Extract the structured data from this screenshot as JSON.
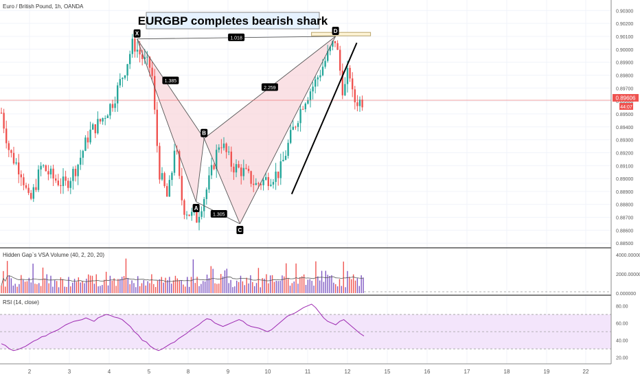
{
  "header": {
    "symbol_title": "Euro / British Pound, 1h, OANDA",
    "idea_title": "EURGBP completes bearish shark"
  },
  "colors": {
    "up": "#26a69a",
    "down": "#ef5350",
    "pattern_fill": "#f8d7dc",
    "pattern_line": "#555555",
    "trendline": "#000000",
    "price_line": "#ef5350",
    "rsi_line": "#9c27b0",
    "rsi_band": "#f3e5fb",
    "vol_up": "#7e57c2",
    "vol_down": "#ef5350"
  },
  "chart_data": [
    {
      "type": "candlestick",
      "title": "Euro / British Pound, 1h, OANDA",
      "x_ticks": [
        "2",
        "3",
        "4",
        "5",
        "8",
        "9",
        "10",
        "11",
        "12",
        "15",
        "16",
        "17",
        "18",
        "19",
        "22"
      ],
      "y_ticks": [
        "0.90300",
        "0.90200",
        "0.90100",
        "0.90000",
        "0.89900",
        "0.89800",
        "0.89700",
        "0.89600",
        "0.89500",
        "0.89400",
        "0.89300",
        "0.89200",
        "0.89100",
        "0.89000",
        "0.88900",
        "0.88800",
        "0.88700",
        "0.88600",
        "0.88500"
      ],
      "ylim": [
        0.8848,
        0.9036
      ],
      "last_price": "0.89606",
      "countdown": "44:07",
      "pattern": {
        "name": "Shark",
        "points": [
          {
            "label": "X",
            "x": "4.7",
            "price": 0.9008
          },
          {
            "label": "A",
            "x": "8.2",
            "price": 0.8882
          },
          {
            "label": "B",
            "x": "8.4",
            "price": 0.8931
          },
          {
            "label": "C",
            "x": "9.3",
            "price": 0.8865
          },
          {
            "label": "D",
            "x": "11.7",
            "price": 0.901
          }
        ],
        "ratios": [
          "1.018",
          "1.385",
          "2.259",
          "1.305"
        ]
      },
      "price_path": [
        {
          "x": "1.0",
          "price": 0.899
        },
        {
          "x": "1.3",
          "price": 0.895
        },
        {
          "x": "1.5",
          "price": 0.892
        },
        {
          "x": "1.8",
          "price": 0.8905
        },
        {
          "x": "2.0",
          "price": 0.888
        },
        {
          "x": "2.3",
          "price": 0.891
        },
        {
          "x": "2.6",
          "price": 0.89
        },
        {
          "x": "2.9",
          "price": 0.8895
        },
        {
          "x": "3.2",
          "price": 0.891
        },
        {
          "x": "3.5",
          "price": 0.8935
        },
        {
          "x": "3.8",
          "price": 0.8945
        },
        {
          "x": "4.1",
          "price": 0.896
        },
        {
          "x": "4.4",
          "price": 0.8985
        },
        {
          "x": "4.6",
          "price": 0.9005
        },
        {
          "x": "4.9",
          "price": 0.899
        },
        {
          "x": "5.2",
          "price": 0.8985
        },
        {
          "x": "5.5",
          "price": 0.894
        },
        {
          "x": "5.8",
          "price": 0.8905
        },
        {
          "x": "6.1",
          "price": 0.8895
        },
        {
          "x": "6.4",
          "price": 0.8885
        },
        {
          "x": "6.7",
          "price": 0.89
        },
        {
          "x": "7.0",
          "price": 0.893
        },
        {
          "x": "7.3",
          "price": 0.89
        },
        {
          "x": "7.6",
          "price": 0.8878
        },
        {
          "x": "7.9",
          "price": 0.8875
        },
        {
          "x": "8.2",
          "price": 0.8868
        },
        {
          "x": "8.5",
          "price": 0.8895
        },
        {
          "x": "8.8",
          "price": 0.893
        },
        {
          "x": "9.1",
          "price": 0.891
        },
        {
          "x": "9.4",
          "price": 0.8905
        },
        {
          "x": "9.7",
          "price": 0.8895
        },
        {
          "x": "10.0",
          "price": 0.89
        },
        {
          "x": "10.3",
          "price": 0.8905
        },
        {
          "x": "10.6",
          "price": 0.8935
        },
        {
          "x": "10.9",
          "price": 0.896
        },
        {
          "x": "11.2",
          "price": 0.8975
        },
        {
          "x": "11.5",
          "price": 0.8995
        },
        {
          "x": "11.7",
          "price": 0.9008
        },
        {
          "x": "11.9",
          "price": 0.8965
        },
        {
          "x": "12.1",
          "price": 0.8985
        },
        {
          "x": "12.3",
          "price": 0.8975
        },
        {
          "x": "12.4",
          "price": 0.896
        }
      ]
    },
    {
      "type": "bar",
      "title": "Hidden Gap`s VSA Volume (40, 2, 20, 20)",
      "y_ticks": [
        "4000.000000",
        "2000.000000",
        "0.000000"
      ],
      "ylim": [
        0,
        4500
      ]
    },
    {
      "type": "line",
      "title": "RSI (14, close)",
      "y_ticks": [
        "80.00",
        "60.00",
        "40.00",
        "20.00"
      ],
      "ylim": [
        15,
        90
      ],
      "band": [
        30,
        70
      ],
      "values": [
        36,
        34,
        30,
        28,
        29,
        31,
        33,
        36,
        39,
        41,
        44,
        45,
        48,
        50,
        52,
        55,
        58,
        60,
        62,
        63,
        64,
        66,
        64,
        62,
        66,
        68,
        70,
        69,
        67,
        66,
        64,
        60,
        56,
        50,
        46,
        40,
        38,
        33,
        30,
        28,
        30,
        33,
        36,
        38,
        42,
        45,
        48,
        52,
        55,
        58,
        62,
        65,
        64,
        60,
        58,
        56,
        58,
        60,
        62,
        64,
        62,
        58,
        56,
        55,
        54,
        52,
        50,
        52,
        56,
        60,
        64,
        68,
        70,
        72,
        75,
        78,
        80,
        82,
        78,
        72,
        66,
        62,
        60,
        58,
        62,
        64,
        60,
        56,
        52,
        48,
        45
      ]
    }
  ]
}
